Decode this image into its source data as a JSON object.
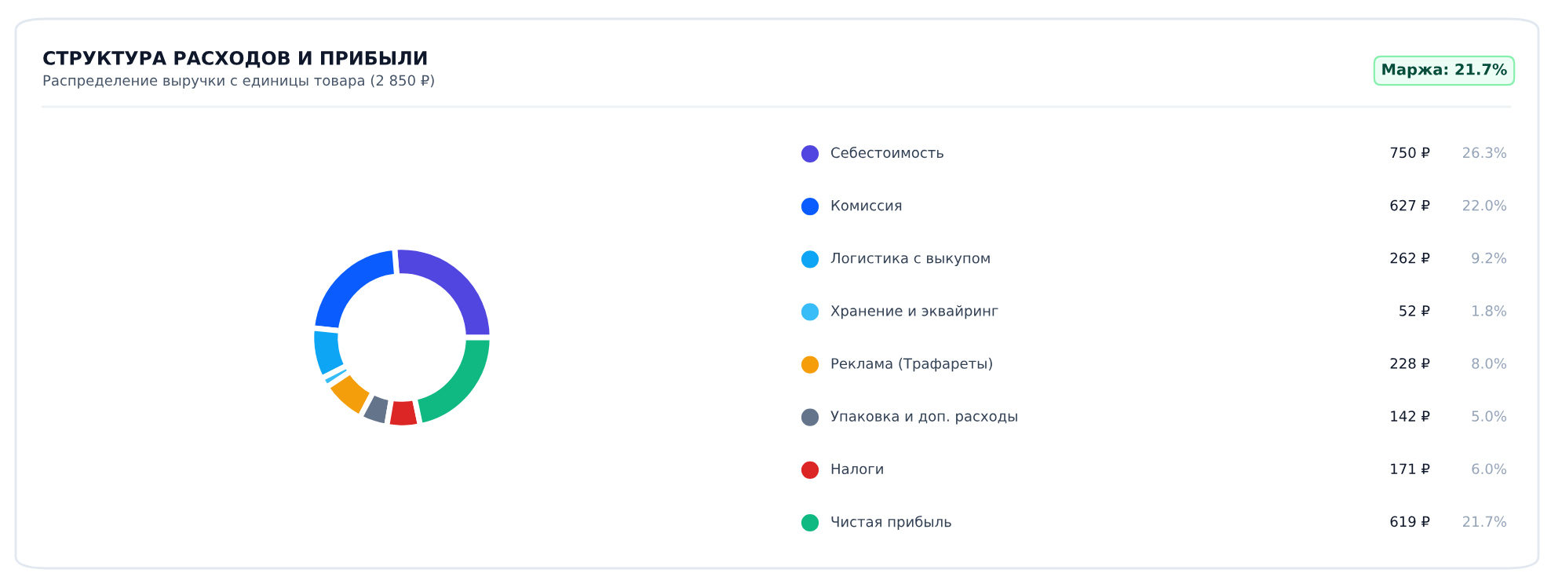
{
  "chart_data": {
    "type": "donut",
    "title": "СТРУКТУРА РАСХОДОВ И ПРИБЫЛИ",
    "subtitle": "Распределение выручки с единицы товара (2 850 ₽)",
    "categories": [
      "Себестоимость",
      "Комиссия",
      "Логистика с выкупом",
      "Хранение и эквайринг",
      "Реклама (Трафареты)",
      "Упаковка и доп. расходы",
      "Налоги",
      "Чистая прибыль"
    ],
    "values": [
      26.3,
      22.0,
      9.2,
      1.8,
      8.0,
      5.0,
      6.0,
      21.7
    ],
    "colors": [
      "#5146e0",
      "#0a5cff",
      "#0ea5f5",
      "#38bdf8",
      "#f59e0b",
      "#64748b",
      "#dc2626",
      "#10b981"
    ],
    "value_labels": [
      [
        "750 ₽",
        "26.3%"
      ],
      [
        "627 ₽",
        "22.0%"
      ],
      [
        "262 ₽",
        "9.2%"
      ],
      [
        "52 ₽",
        "1.8%"
      ],
      [
        "228 ₽",
        "8.0%"
      ],
      [
        "142 ₽",
        "5.0%"
      ],
      [
        "171 ₽",
        "6.0%"
      ],
      [
        "619 ₽",
        "21.7%"
      ]
    ],
    "annotations": [
      "Маржа: 21.7%"
    ],
    "legend": "right"
  }
}
